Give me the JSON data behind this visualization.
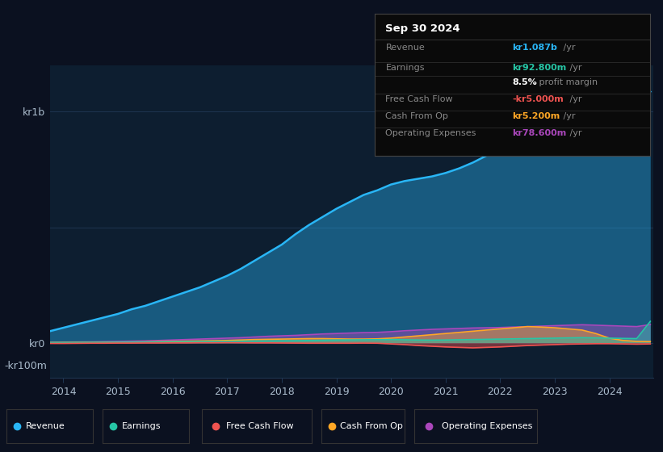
{
  "background_color": "#0b1120",
  "plot_bg_color": "#0d1e30",
  "x_years": [
    2013.75,
    2014.0,
    2014.25,
    2014.5,
    2014.75,
    2015.0,
    2015.25,
    2015.5,
    2015.75,
    2016.0,
    2016.25,
    2016.5,
    2016.75,
    2017.0,
    2017.25,
    2017.5,
    2017.75,
    2018.0,
    2018.25,
    2018.5,
    2018.75,
    2019.0,
    2019.25,
    2019.5,
    2019.75,
    2020.0,
    2020.25,
    2020.5,
    2020.75,
    2021.0,
    2021.25,
    2021.5,
    2021.75,
    2022.0,
    2022.25,
    2022.5,
    2022.75,
    2023.0,
    2023.25,
    2023.5,
    2023.75,
    2024.0,
    2024.25,
    2024.5,
    2024.75
  ],
  "revenue": [
    50,
    65,
    80,
    95,
    110,
    125,
    145,
    160,
    180,
    200,
    220,
    240,
    265,
    290,
    320,
    355,
    390,
    425,
    470,
    510,
    545,
    580,
    610,
    640,
    660,
    685,
    700,
    710,
    720,
    735,
    755,
    780,
    810,
    845,
    890,
    940,
    985,
    1040,
    1100,
    1150,
    1120,
    1080,
    1060,
    1040,
    1087
  ],
  "earnings": [
    1,
    1.2,
    1.5,
    1.8,
    2,
    2.5,
    3,
    3,
    3.5,
    4,
    4.5,
    5,
    5.5,
    6,
    7,
    7.5,
    8,
    8.5,
    9,
    10,
    11,
    12,
    12.5,
    13,
    13.5,
    14,
    13,
    12,
    11.5,
    12,
    13,
    14,
    15,
    16,
    17,
    18,
    19,
    20,
    21,
    22,
    21,
    20,
    19,
    18,
    92.8
  ],
  "free_cash_flow": [
    -3,
    -3,
    -2.5,
    -2,
    -2,
    -1.5,
    -1.5,
    -1,
    -1,
    -0.5,
    -0.5,
    0,
    0,
    0.5,
    0,
    -0.5,
    -0.5,
    -1,
    -1.5,
    -2,
    -2,
    -2,
    -2,
    -1.5,
    -2,
    -5,
    -8,
    -12,
    -15,
    -18,
    -20,
    -22,
    -20,
    -18,
    -15,
    -12,
    -10,
    -8,
    -6,
    -5,
    -4,
    -4,
    -5,
    -6,
    -5
  ],
  "cash_from_op": [
    1,
    1.5,
    2,
    2,
    2.5,
    3,
    3.5,
    4,
    5,
    6,
    7,
    8,
    9,
    10,
    12,
    14,
    15,
    16,
    17,
    18,
    18,
    17,
    16,
    16,
    17,
    20,
    25,
    30,
    35,
    40,
    45,
    50,
    55,
    60,
    65,
    70,
    68,
    65,
    60,
    55,
    40,
    20,
    10,
    6,
    5.2
  ],
  "operating_expenses": [
    2,
    3,
    3.5,
    4,
    5,
    6,
    7,
    8,
    10,
    12,
    14,
    16,
    18,
    20,
    22,
    25,
    28,
    30,
    32,
    35,
    38,
    40,
    42,
    44,
    45,
    48,
    52,
    55,
    58,
    60,
    62,
    64,
    65,
    66,
    68,
    70,
    72,
    74,
    76,
    78,
    76,
    74,
    72,
    70,
    78.6
  ],
  "revenue_color": "#29b6f6",
  "earnings_color": "#26c6a6",
  "free_cash_flow_color": "#ef5350",
  "cash_from_op_color": "#ffa726",
  "operating_expenses_color": "#ab47bc",
  "ylim_min": -150,
  "ylim_max": 1200,
  "grid_color": "#1e3550",
  "axis_label_color": "#8899aa",
  "tick_label_color": "#aabbcc",
  "info_title": "Sep 30 2024",
  "info_rows": [
    {
      "label": "Revenue",
      "value": "kr1.087b",
      "suffix": " /yr",
      "value_color": "#29b6f6"
    },
    {
      "label": "Earnings",
      "value": "kr92.800m",
      "suffix": " /yr",
      "value_color": "#26c6a6"
    },
    {
      "label": "",
      "value": "8.5%",
      "suffix": " profit margin",
      "value_color": "#ffffff"
    },
    {
      "label": "Free Cash Flow",
      "value": "-kr5.000m",
      "suffix": " /yr",
      "value_color": "#ef5350"
    },
    {
      "label": "Cash From Op",
      "value": "kr5.200m",
      "suffix": " /yr",
      "value_color": "#ffa726"
    },
    {
      "label": "Operating Expenses",
      "value": "kr78.600m",
      "suffix": " /yr",
      "value_color": "#ab47bc"
    }
  ],
  "legend_items": [
    {
      "label": "Revenue",
      "color": "#29b6f6"
    },
    {
      "label": "Earnings",
      "color": "#26c6a6"
    },
    {
      "label": "Free Cash Flow",
      "color": "#ef5350"
    },
    {
      "label": "Cash From Op",
      "color": "#ffa726"
    },
    {
      "label": "Operating Expenses",
      "color": "#ab47bc"
    }
  ]
}
